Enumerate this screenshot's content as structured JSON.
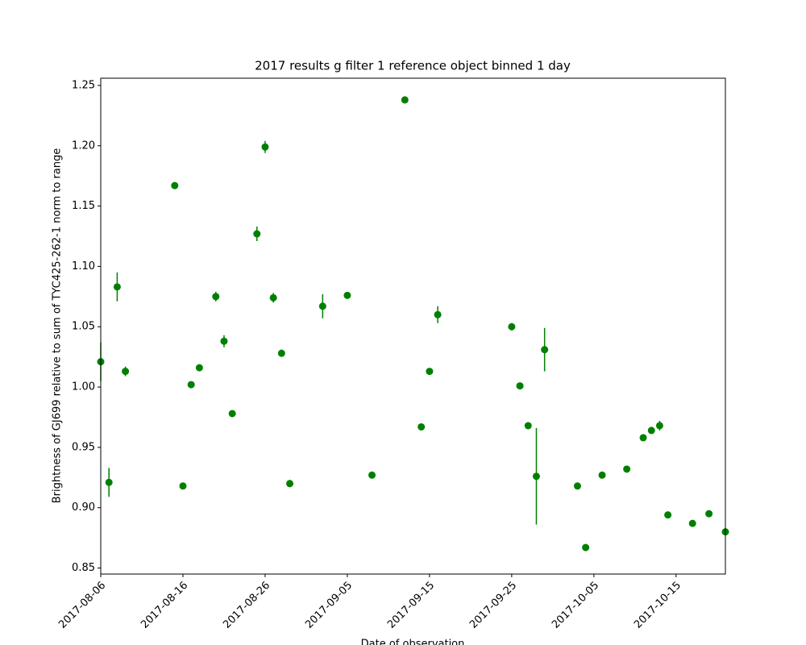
{
  "chart_data": {
    "type": "errorbar",
    "title": "2017 results g filter 1 reference object binned 1 day",
    "x_label": "Date of observation",
    "y_label": "Brightness of GJ699 relative to sum of TYC425-262-1 norm to range",
    "color": "#008000",
    "x": [
      "2017-08-06",
      "2017-08-07",
      "2017-08-08",
      "2017-08-09",
      "2017-08-15",
      "2017-08-16",
      "2017-08-17",
      "2017-08-18",
      "2017-08-20",
      "2017-08-21",
      "2017-08-22",
      "2017-08-25",
      "2017-08-26",
      "2017-08-27",
      "2017-08-28",
      "2017-08-29",
      "2017-09-02",
      "2017-09-05",
      "2017-09-08",
      "2017-09-12",
      "2017-09-14",
      "2017-09-15",
      "2017-09-16",
      "2017-09-25",
      "2017-09-26",
      "2017-09-27",
      "2017-09-28",
      "2017-09-29",
      "2017-10-03",
      "2017-10-04",
      "2017-10-06",
      "2017-10-09",
      "2017-10-11",
      "2017-10-12",
      "2017-10-13",
      "2017-10-14",
      "2017-10-17",
      "2017-10-19",
      "2017-10-21"
    ],
    "values": [
      1.021,
      0.921,
      1.083,
      1.013,
      1.167,
      0.918,
      1.002,
      1.016,
      1.075,
      1.038,
      0.978,
      1.127,
      1.199,
      1.074,
      1.028,
      0.92,
      1.067,
      1.076,
      0.927,
      1.238,
      0.967,
      1.013,
      1.06,
      1.05,
      1.001,
      0.968,
      0.926,
      1.031,
      0.918,
      0.867,
      0.927,
      0.932,
      0.958,
      0.964,
      0.968,
      0.894,
      0.887,
      0.895,
      0.88
    ],
    "errors": [
      0.016,
      0.012,
      0.012,
      0.004,
      0.002,
      0.002,
      0.002,
      0.002,
      0.004,
      0.005,
      0.002,
      0.006,
      0.005,
      0.004,
      0.003,
      0.003,
      0.01,
      0.002,
      0.002,
      0.002,
      0.002,
      0.002,
      0.007,
      0.003,
      0.002,
      0.002,
      0.04,
      0.018,
      0.002,
      0.003,
      0.002,
      0.002,
      0.002,
      0.002,
      0.004,
      0.002,
      0.002,
      0.002,
      0.002
    ],
    "xlim": [
      "2017-08-06",
      "2017-10-21"
    ],
    "xticks": [
      "2017-08-06",
      "2017-08-16",
      "2017-08-26",
      "2017-09-05",
      "2017-09-15",
      "2017-09-25",
      "2017-10-05",
      "2017-10-15"
    ],
    "ylim": [
      0.845,
      1.256
    ],
    "yticks": [
      {
        "value": 0.85,
        "label": "0.85"
      },
      {
        "value": 0.9,
        "label": "0.90"
      },
      {
        "value": 0.95,
        "label": "0.95"
      },
      {
        "value": 1.0,
        "label": "1.00"
      },
      {
        "value": 1.05,
        "label": "1.05"
      },
      {
        "value": 1.1,
        "label": "1.10"
      },
      {
        "value": 1.15,
        "label": "1.15"
      },
      {
        "value": 1.2,
        "label": "1.20"
      },
      {
        "value": 1.25,
        "label": "1.25"
      }
    ],
    "grid": false
  }
}
